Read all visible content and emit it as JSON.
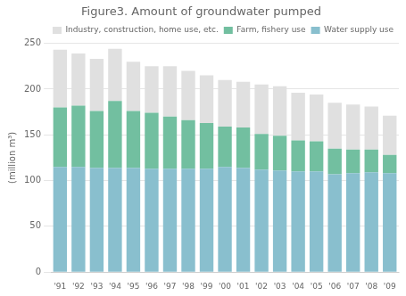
{
  "chart_data": {
    "type": "bar",
    "title": "Figure3. Amount of groundwater pumped",
    "ylabel": "(million m³)",
    "categories": [
      "'91",
      "'92",
      "'93",
      "'94",
      "'95",
      "'96",
      "'97",
      "'98",
      "'99",
      "'00",
      "'01",
      "'02",
      "'03",
      "'04",
      "'05",
      "'06",
      "'07",
      "'08",
      "'09"
    ],
    "series": [
      {
        "name": "Water supply use",
        "color": "#89bfce",
        "values": [
          115,
          115,
          114,
          114,
          114,
          113,
          113,
          113,
          113,
          115,
          114,
          112,
          111,
          110,
          110,
          107,
          108,
          109,
          108
        ]
      },
      {
        "name": "Farm, fishery use",
        "color": "#72bfa0",
        "values": [
          65,
          67,
          62,
          73,
          62,
          61,
          57,
          53,
          50,
          44,
          44,
          39,
          38,
          34,
          33,
          28,
          26,
          25,
          20
        ]
      },
      {
        "name": "Industry, construction, home use, etc.",
        "color": "#e0e0e0",
        "values": [
          63,
          57,
          57,
          57,
          54,
          51,
          55,
          54,
          52,
          51,
          50,
          54,
          54,
          52,
          51,
          50,
          49,
          47,
          43
        ]
      }
    ],
    "stacked": true,
    "ylim": [
      0,
      250
    ],
    "yticks": [
      0,
      50,
      100,
      150,
      200,
      250
    ],
    "grid": true,
    "legend": "upper right"
  }
}
